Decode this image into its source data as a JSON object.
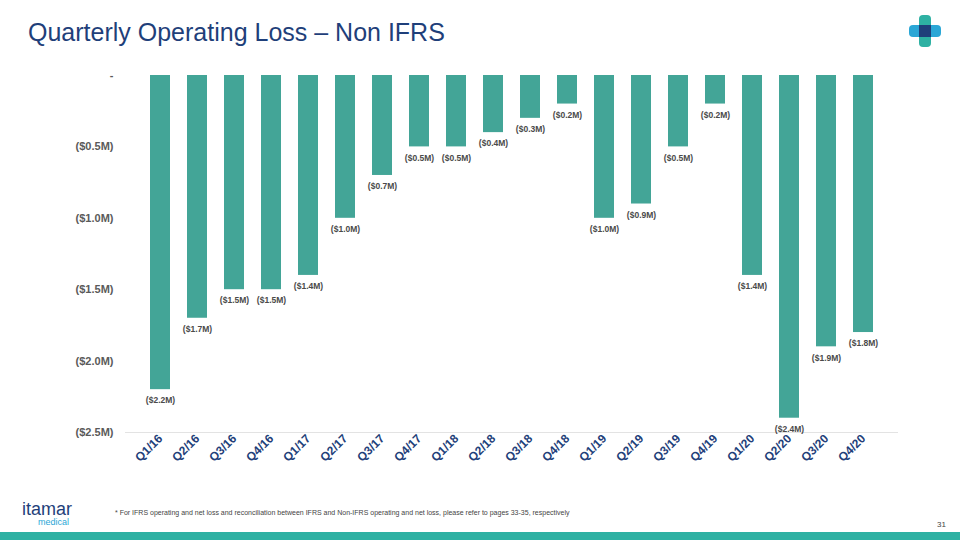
{
  "chart_data": {
    "type": "bar",
    "title": "Quarterly Operating Loss – Non IFRS",
    "categories": [
      "Q1/16",
      "Q2/16",
      "Q3/16",
      "Q4/16",
      "Q1/17",
      "Q2/17",
      "Q3/17",
      "Q4/17",
      "Q1/18",
      "Q2/18",
      "Q3/18",
      "Q4/18",
      "Q1/19",
      "Q2/19",
      "Q3/19",
      "Q4/19",
      "Q1/20",
      "Q2/20",
      "Q3/20",
      "Q4/20"
    ],
    "values": [
      -2.2,
      -1.7,
      -1.5,
      -1.5,
      -1.4,
      -1.0,
      -0.7,
      -0.5,
      -0.5,
      -0.4,
      -0.3,
      -0.2,
      -1.0,
      -0.9,
      -0.5,
      -0.2,
      -1.4,
      -2.4,
      -1.9,
      -1.8
    ],
    "value_labels": [
      "($2.2M)",
      "($1.7M)",
      "($1.5M)",
      "($1.5M)",
      "($1.4M)",
      "($1.0M)",
      "($0.7M)",
      "($0.5M)",
      "($0.5M)",
      "($0.4M)",
      "($0.3M)",
      "($0.2M)",
      "($1.0M)",
      "($0.9M)",
      "($0.5M)",
      "($0.2M)",
      "($1.4M)",
      "($2.4M)",
      "($1.9M)",
      "($1.8M)"
    ],
    "data_labels": true,
    "color": "#43a597",
    "ylim": [
      -2.5,
      0
    ],
    "yticks": [
      {
        "value": 0,
        "label": "-"
      },
      {
        "value": -0.5,
        "label": "($0.5M)"
      },
      {
        "value": -1.0,
        "label": "($1.0M)"
      },
      {
        "value": -1.5,
        "label": "($1.5M)"
      },
      {
        "value": -2.0,
        "label": "($2.0M)"
      },
      {
        "value": -2.5,
        "label": "($2.5M)"
      }
    ],
    "grid": false
  },
  "footnote": "* For IFRS operating and net loss and reconciliation between IFRS and Non-IFRS operating and net loss, please refer to pages 33-35, respectively",
  "page_number": 31,
  "brand": {
    "name": "itamar",
    "tagline": "medical"
  }
}
